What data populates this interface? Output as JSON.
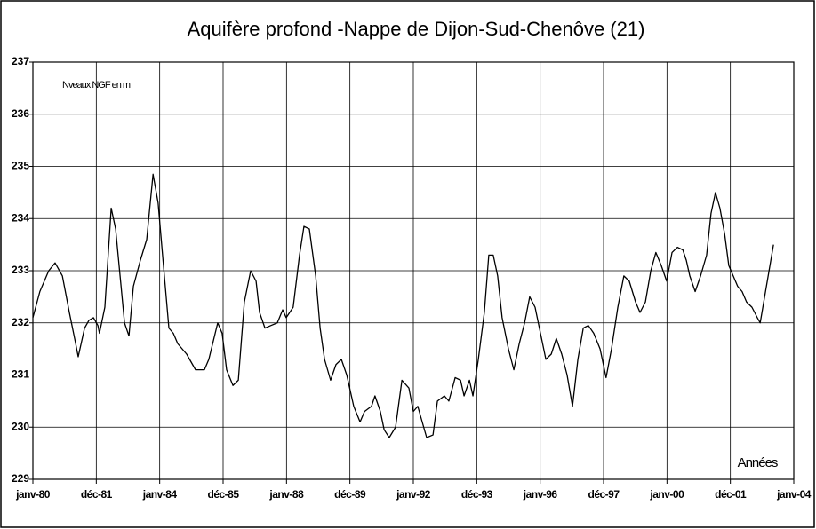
{
  "chart_data": {
    "type": "line",
    "title": "Aquifère profond -Nappe de Dijon-Sud-Chenôve (21)",
    "y_label": "Nveaux NGF en m",
    "x_label": "Années",
    "x": [
      1980.0,
      1980.22,
      1980.5,
      1980.7,
      1980.93,
      1981.15,
      1981.35,
      1981.43,
      1981.63,
      1981.77,
      1981.91,
      1982.05,
      1982.1,
      1982.27,
      1982.47,
      1982.61,
      1982.75,
      1982.89,
      1983.03,
      1983.17,
      1983.39,
      1983.59,
      1983.79,
      1983.95,
      1984.09,
      1984.29,
      1984.43,
      1984.57,
      1984.85,
      1985.13,
      1985.41,
      1985.55,
      1985.83,
      1985.97,
      1986.11,
      1986.31,
      1986.48,
      1986.67,
      1986.87,
      1987.04,
      1987.15,
      1987.32,
      1987.51,
      1987.71,
      1987.88,
      1987.99,
      1988.21,
      1988.41,
      1988.55,
      1988.72,
      1988.92,
      1989.06,
      1989.2,
      1989.39,
      1989.56,
      1989.73,
      1989.9,
      1990.12,
      1990.32,
      1990.46,
      1990.68,
      1990.79,
      1990.96,
      1991.08,
      1991.24,
      1991.44,
      1991.64,
      1991.86,
      1992.0,
      1992.14,
      1992.28,
      1992.42,
      1992.62,
      1992.76,
      1992.98,
      1993.12,
      1993.32,
      1993.49,
      1993.6,
      1993.77,
      1993.88,
      1994.05,
      1994.24,
      1994.38,
      1994.52,
      1994.66,
      1994.8,
      1995.0,
      1995.17,
      1995.34,
      1995.51,
      1995.67,
      1995.84,
      1996.01,
      1996.18,
      1996.35,
      1996.51,
      1996.68,
      1996.85,
      1997.02,
      1997.19,
      1997.36,
      1997.52,
      1997.69,
      1997.89,
      1998.08,
      1998.25,
      1998.45,
      1998.64,
      1998.81,
      1999.01,
      1999.15,
      1999.32,
      1999.49,
      1999.65,
      1999.82,
      1999.99,
      2000.16,
      2000.33,
      2000.5,
      2000.61,
      2000.72,
      2000.89,
      2001.06,
      2001.25,
      2001.39,
      2001.53,
      2001.67,
      2001.82,
      2001.95,
      2002.09,
      2002.23,
      2002.37,
      2002.51,
      2002.68,
      2002.85,
      2002.94,
      2003.08,
      2003.22,
      2003.36
    ],
    "series": [
      {
        "color": "#000000",
        "values": [
          232.1,
          232.6,
          233.0,
          233.15,
          232.9,
          232.2,
          231.6,
          231.35,
          231.9,
          232.05,
          232.1,
          231.95,
          231.8,
          232.3,
          234.2,
          233.8,
          232.9,
          232.0,
          231.75,
          232.7,
          233.2,
          233.6,
          234.85,
          234.3,
          233.3,
          231.9,
          231.8,
          231.6,
          231.4,
          231.1,
          231.1,
          231.3,
          232.0,
          231.8,
          231.1,
          230.8,
          230.9,
          232.4,
          233.0,
          232.8,
          232.2,
          231.9,
          231.95,
          232.0,
          232.25,
          232.1,
          232.3,
          233.3,
          233.85,
          233.8,
          232.9,
          231.9,
          231.3,
          230.9,
          231.2,
          231.3,
          231.0,
          230.4,
          230.1,
          230.3,
          230.4,
          230.6,
          230.3,
          229.95,
          229.8,
          230.0,
          230.9,
          230.75,
          230.3,
          230.4,
          230.1,
          229.8,
          229.85,
          230.5,
          230.6,
          230.5,
          230.95,
          230.9,
          230.6,
          230.9,
          230.6,
          231.3,
          232.2,
          233.3,
          233.3,
          232.9,
          232.1,
          231.5,
          231.1,
          231.6,
          232.0,
          232.5,
          232.3,
          231.8,
          231.3,
          231.4,
          231.7,
          231.4,
          231.0,
          230.4,
          231.3,
          231.9,
          231.95,
          231.8,
          231.5,
          230.95,
          231.5,
          232.3,
          232.9,
          232.8,
          232.4,
          232.2,
          232.4,
          233.0,
          233.35,
          233.1,
          232.8,
          233.35,
          233.45,
          233.4,
          233.2,
          232.9,
          232.6,
          232.9,
          233.3,
          234.1,
          234.5,
          234.2,
          233.7,
          233.1,
          232.9,
          232.7,
          232.6,
          232.4,
          232.3,
          232.1,
          232.0,
          232.5,
          233.0,
          233.5
        ]
      }
    ],
    "xlim": [
      1980,
      2004
    ],
    "xticks": [
      {
        "value": 1980,
        "label": "janv-80"
      },
      {
        "value": 1982,
        "label": "déc-81"
      },
      {
        "value": 1984,
        "label": "janv-84"
      },
      {
        "value": 1986,
        "label": "déc-85"
      },
      {
        "value": 1988,
        "label": "janv-88"
      },
      {
        "value": 1990,
        "label": "déc-89"
      },
      {
        "value": 1992,
        "label": "janv-92"
      },
      {
        "value": 1994,
        "label": "déc-93"
      },
      {
        "value": 1996,
        "label": "janv-96"
      },
      {
        "value": 1998,
        "label": "déc-97"
      },
      {
        "value": 2000,
        "label": "janv-00"
      },
      {
        "value": 2002,
        "label": "déc-01"
      },
      {
        "value": 2004,
        "label": "janv-04"
      }
    ],
    "ylim": [
      229,
      237
    ],
    "yticks": [
      229,
      230,
      231,
      232,
      233,
      234,
      235,
      236,
      237
    ],
    "grid": true
  }
}
